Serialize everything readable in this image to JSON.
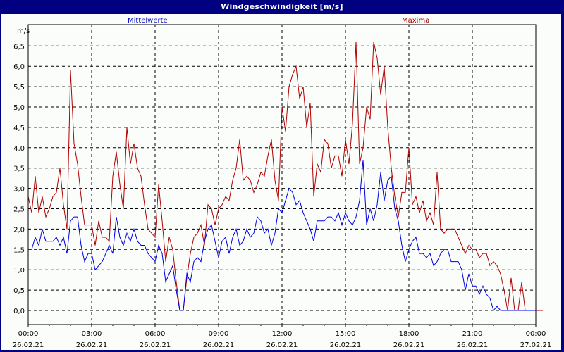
{
  "window": {
    "title": "Windgeschwindigkeit [m/s]"
  },
  "legend": {
    "mean_label": "Mittelwerte",
    "max_label": "Maxima"
  },
  "colors": {
    "title_bar": "#000080",
    "background": "#fbfdfb",
    "mean_series": "#0000e0",
    "max_series": "#b00000",
    "grid": "#000000"
  },
  "chart_data": {
    "type": "line",
    "title": "Windgeschwindigkeit [m/s]",
    "xlabel": "",
    "ylabel": "m/s",
    "ylim": [
      0,
      6.5
    ],
    "y_ticks": [
      "0,0",
      "0,5",
      "1,0",
      "1,5",
      "2,0",
      "2,5",
      "3,0",
      "3,5",
      "4,0",
      "4,5",
      "5,0",
      "5,5",
      "6,0",
      "6,5"
    ],
    "x_ticks": [
      {
        "time": "00:00",
        "date": "26.02.21"
      },
      {
        "time": "03:00",
        "date": "26.02.21"
      },
      {
        "time": "06:00",
        "date": "26.02.21"
      },
      {
        "time": "09:00",
        "date": "26.02.21"
      },
      {
        "time": "12:00",
        "date": "26.02.21"
      },
      {
        "time": "15:00",
        "date": "26.02.21"
      },
      {
        "time": "18:00",
        "date": "26.02.21"
      },
      {
        "time": "21:00",
        "date": "26.02.21"
      },
      {
        "time": "00:00",
        "date": "27.02.21"
      }
    ],
    "grid": true,
    "legend_position": "top",
    "x_interval_minutes": 10,
    "x_start": "26.02.21 00:00",
    "series": [
      {
        "name": "Mittelwerte",
        "values": [
          1.5,
          1.5,
          1.8,
          1.6,
          2.0,
          1.7,
          1.7,
          1.7,
          1.8,
          1.6,
          1.8,
          1.4,
          2.2,
          2.3,
          2.3,
          1.6,
          1.2,
          1.4,
          1.4,
          1.0,
          1.1,
          1.2,
          1.4,
          1.6,
          1.4,
          2.3,
          1.8,
          1.6,
          1.9,
          1.7,
          2.0,
          1.7,
          1.6,
          1.6,
          1.4,
          1.3,
          1.2,
          1.6,
          1.4,
          0.7,
          0.9,
          1.1,
          0.5,
          0.0,
          0.0,
          0.9,
          0.7,
          1.2,
          1.3,
          1.2,
          1.7,
          2.0,
          2.1,
          1.7,
          1.3,
          1.7,
          1.8,
          1.4,
          1.8,
          2.0,
          1.6,
          1.7,
          2.0,
          1.8,
          1.9,
          2.3,
          2.2,
          1.9,
          2.0,
          1.6,
          1.9,
          2.5,
          2.4,
          2.7,
          3.0,
          2.9,
          2.6,
          2.7,
          2.4,
          2.2,
          2.0,
          1.7,
          2.2,
          2.2,
          2.2,
          2.3,
          2.3,
          2.2,
          2.4,
          2.1,
          2.4,
          2.2,
          2.1,
          2.3,
          2.7,
          3.7,
          2.1,
          2.5,
          2.2,
          2.6,
          3.4,
          2.7,
          3.2,
          3.3,
          2.5,
          2.2,
          1.6,
          1.2,
          1.5,
          1.7,
          1.8,
          1.4,
          1.4,
          1.3,
          1.4,
          1.1,
          1.2,
          1.4,
          1.5,
          1.5,
          1.2,
          1.2,
          1.2,
          1.0,
          0.5,
          0.9,
          0.6,
          0.6,
          0.4,
          0.6,
          0.4,
          0.3,
          0.0,
          0.1,
          0.0,
          0.0,
          0.0,
          0.0,
          0.0,
          0.0,
          0.0,
          0.0,
          0.0,
          0.0,
          0.0
        ]
      },
      {
        "name": "Maxima",
        "values": [
          2.8,
          2.4,
          3.3,
          2.4,
          2.8,
          2.3,
          2.5,
          2.8,
          2.9,
          3.5,
          2.6,
          2.0,
          5.9,
          4.1,
          3.6,
          2.8,
          2.1,
          2.1,
          2.1,
          1.6,
          2.2,
          1.8,
          1.8,
          1.7,
          3.3,
          3.9,
          3.1,
          2.5,
          4.5,
          3.6,
          4.1,
          3.5,
          3.3,
          2.6,
          2.0,
          1.9,
          1.8,
          3.1,
          2.2,
          1.2,
          1.8,
          1.5,
          0.7,
          0.0,
          0.0,
          0.8,
          1.4,
          1.8,
          1.9,
          2.1,
          1.6,
          2.6,
          2.5,
          2.1,
          2.5,
          2.6,
          2.8,
          2.7,
          3.2,
          3.5,
          4.2,
          3.2,
          3.3,
          3.2,
          2.9,
          3.1,
          3.4,
          3.3,
          3.8,
          4.2,
          3.2,
          2.7,
          5.0,
          4.4,
          5.5,
          5.8,
          6.0,
          5.2,
          5.5,
          4.5,
          5.1,
          2.8,
          3.6,
          3.4,
          4.2,
          4.1,
          3.5,
          3.8,
          3.8,
          3.3,
          4.2,
          3.6,
          4.6,
          6.6,
          3.6,
          4.0,
          5.0,
          4.7,
          6.6,
          6.2,
          5.3,
          6.0,
          4.5,
          3.5,
          2.8,
          2.3,
          2.9,
          2.9,
          4.0,
          2.6,
          2.8,
          2.4,
          2.7,
          2.2,
          2.4,
          2.1,
          3.4,
          2.0,
          1.9,
          2.0,
          2.0,
          2.0,
          1.8,
          1.6,
          1.4,
          1.6,
          1.5,
          1.5,
          1.3,
          1.4,
          1.4,
          1.1,
          1.2,
          1.1,
          0.9,
          0.5,
          0.0,
          0.8,
          0.0,
          0.0,
          0.7,
          0.0,
          0.0,
          0.0,
          0.0,
          0.0,
          0.0
        ]
      }
    ]
  }
}
